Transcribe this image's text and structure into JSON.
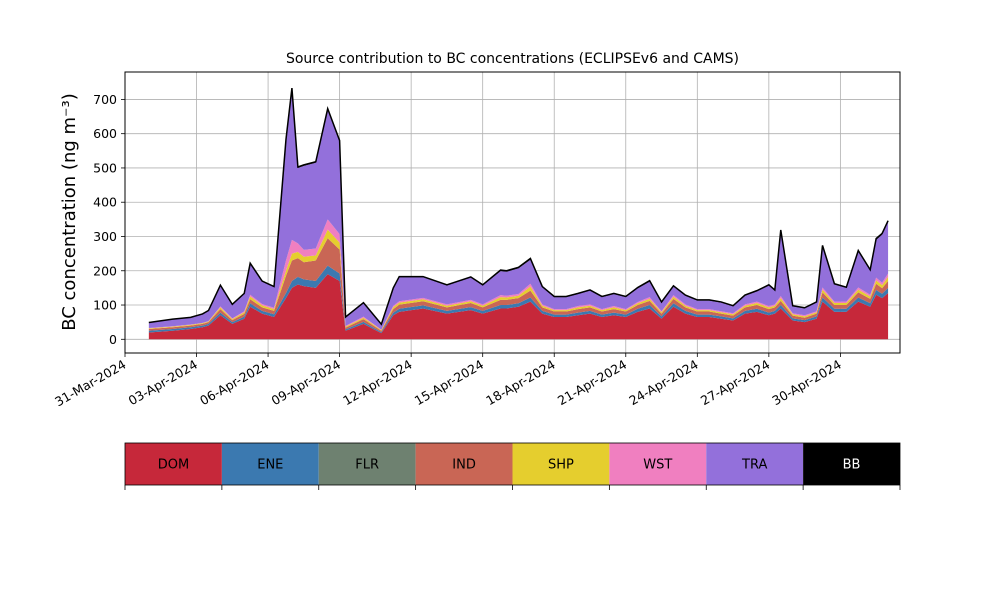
{
  "chart_data": {
    "type": "area",
    "stacked": true,
    "title": "Source contribution to BC concentrations (ECLIPSEv6 and CAMS)",
    "ylabel": "BC concentration (ng m⁻³)",
    "xlabel": "",
    "ylim": [
      -40,
      780
    ],
    "xlim": [
      "2024-03-31T00:00",
      "2024-05-02T12:00"
    ],
    "yticks": [
      0,
      100,
      200,
      300,
      400,
      500,
      600,
      700
    ],
    "xtick_labels": [
      "31-Mar-2024",
      "03-Apr-2024",
      "06-Apr-2024",
      "09-Apr-2024",
      "12-Apr-2024",
      "15-Apr-2024",
      "18-Apr-2024",
      "21-Apr-2024",
      "24-Apr-2024",
      "27-Apr-2024",
      "30-Apr-2024"
    ],
    "grid": true,
    "x": [
      "2024-04-01T00:00",
      "2024-04-02T00:00",
      "2024-04-02T18:00",
      "2024-04-03T06:00",
      "2024-04-03T12:00",
      "2024-04-04T00:00",
      "2024-04-04T12:00",
      "2024-04-05T00:00",
      "2024-04-05T06:00",
      "2024-04-05T18:00",
      "2024-04-06T06:00",
      "2024-04-06T18:00",
      "2024-04-07T00:00",
      "2024-04-07T06:00",
      "2024-04-07T12:00",
      "2024-04-08T00:00",
      "2024-04-08T12:00",
      "2024-04-09T00:00",
      "2024-04-09T06:00",
      "2024-04-10T00:00",
      "2024-04-10T18:00",
      "2024-04-11T06:00",
      "2024-04-11T12:00",
      "2024-04-12T12:00",
      "2024-04-13T12:00",
      "2024-04-14T12:00",
      "2024-04-15T00:00",
      "2024-04-15T18:00",
      "2024-04-16T00:00",
      "2024-04-16T12:00",
      "2024-04-17T00:00",
      "2024-04-17T12:00",
      "2024-04-18T00:00",
      "2024-04-18T12:00",
      "2024-04-19T00:00",
      "2024-04-19T12:00",
      "2024-04-20T00:00",
      "2024-04-20T12:00",
      "2024-04-21T00:00",
      "2024-04-21T12:00",
      "2024-04-22T00:00",
      "2024-04-22T12:00",
      "2024-04-23T00:00",
      "2024-04-23T12:00",
      "2024-04-24T00:00",
      "2024-04-24T12:00",
      "2024-04-25T00:00",
      "2024-04-25T12:00",
      "2024-04-26T00:00",
      "2024-04-26T12:00",
      "2024-04-27T00:00",
      "2024-04-27T06:00",
      "2024-04-27T12:00",
      "2024-04-28T00:00",
      "2024-04-28T12:00",
      "2024-04-29T00:00",
      "2024-04-29T06:00",
      "2024-04-29T18:00",
      "2024-04-30T06:00",
      "2024-04-30T18:00",
      "2024-05-01T06:00",
      "2024-05-01T12:00",
      "2024-05-01T18:00",
      "2024-05-02T00:00"
    ],
    "series": [
      {
        "name": "DOM",
        "values": [
          20,
          25,
          30,
          35,
          40,
          70,
          45,
          60,
          95,
          75,
          65,
          120,
          150,
          160,
          155,
          150,
          190,
          170,
          25,
          45,
          18,
          70,
          80,
          90,
          75,
          85,
          75,
          90,
          90,
          95,
          110,
          75,
          65,
          65,
          70,
          75,
          65,
          70,
          65,
          80,
          90,
          60,
          95,
          75,
          65,
          65,
          60,
          55,
          75,
          80,
          70,
          75,
          90,
          55,
          50,
          60,
          110,
          80,
          80,
          110,
          95,
          130,
          120,
          135
        ]
      },
      {
        "name": "ENE",
        "values": [
          5,
          5,
          5,
          5,
          5,
          8,
          5,
          6,
          10,
          8,
          8,
          15,
          20,
          22,
          20,
          20,
          25,
          22,
          4,
          6,
          3,
          8,
          9,
          9,
          8,
          9,
          8,
          10,
          10,
          10,
          12,
          8,
          7,
          7,
          8,
          8,
          7,
          8,
          7,
          9,
          10,
          7,
          10,
          8,
          7,
          7,
          7,
          6,
          8,
          9,
          8,
          8,
          10,
          6,
          6,
          7,
          12,
          9,
          9,
          12,
          10,
          14,
          13,
          15
        ]
      },
      {
        "name": "FLR",
        "values": [
          0,
          0,
          0,
          0,
          0,
          0,
          0,
          0,
          0,
          0,
          0,
          0,
          0,
          0,
          0,
          0,
          0,
          0,
          0,
          0,
          0,
          0,
          0,
          0,
          0,
          0,
          0,
          0,
          0,
          0,
          0,
          0,
          0,
          0,
          0,
          0,
          0,
          0,
          0,
          0,
          0,
          0,
          0,
          0,
          0,
          0,
          0,
          0,
          0,
          0,
          0,
          0,
          0,
          0,
          0,
          0,
          0,
          0,
          0,
          0,
          0,
          0,
          0,
          0
        ]
      },
      {
        "name": "IND",
        "values": [
          5,
          5,
          5,
          5,
          5,
          10,
          6,
          8,
          12,
          10,
          10,
          50,
          60,
          55,
          50,
          60,
          80,
          70,
          5,
          8,
          4,
          10,
          12,
          12,
          10,
          12,
          10,
          15,
          15,
          15,
          20,
          10,
          9,
          9,
          10,
          10,
          9,
          10,
          9,
          11,
          12,
          8,
          13,
          10,
          9,
          9,
          8,
          8,
          10,
          11,
          10,
          10,
          12,
          8,
          7,
          8,
          15,
          11,
          11,
          15,
          13,
          18,
          16,
          20
        ]
      },
      {
        "name": "SHP",
        "values": [
          2,
          2,
          2,
          2,
          2,
          5,
          3,
          5,
          8,
          6,
          5,
          15,
          20,
          18,
          16,
          15,
          25,
          20,
          3,
          4,
          2,
          6,
          6,
          6,
          5,
          5,
          5,
          8,
          7,
          7,
          12,
          5,
          4,
          4,
          5,
          5,
          4,
          5,
          4,
          5,
          6,
          4,
          6,
          5,
          4,
          4,
          4,
          4,
          5,
          6,
          5,
          5,
          8,
          4,
          4,
          4,
          8,
          6,
          6,
          8,
          7,
          10,
          9,
          12
        ]
      },
      {
        "name": "WST",
        "values": [
          1,
          1,
          1,
          1,
          1,
          3,
          2,
          3,
          5,
          4,
          4,
          30,
          40,
          25,
          20,
          20,
          30,
          25,
          2,
          3,
          1,
          4,
          4,
          4,
          4,
          4,
          4,
          6,
          5,
          5,
          8,
          4,
          3,
          3,
          4,
          4,
          3,
          4,
          3,
          4,
          5,
          3,
          5,
          4,
          3,
          3,
          3,
          3,
          4,
          4,
          4,
          4,
          6,
          3,
          3,
          3,
          6,
          4,
          4,
          6,
          5,
          8,
          7,
          10
        ]
      },
      {
        "name": "TRA",
        "values": [
          15,
          20,
          20,
          25,
          30,
          60,
          40,
          50,
          90,
          65,
          60,
          350,
          440,
          220,
          245,
          250,
          320,
          270,
          25,
          40,
          15,
          50,
          70,
          60,
          55,
          65,
          55,
          70,
          70,
          75,
          70,
          50,
          35,
          35,
          35,
          40,
          35,
          35,
          35,
          40,
          45,
          25,
          25,
          25,
          25,
          25,
          25,
          20,
          25,
          30,
          60,
          40,
          190,
          20,
          20,
          25,
          120,
          50,
          40,
          105,
          70,
          110,
          140,
          150
        ]
      },
      {
        "name": "BB",
        "values": [
          1,
          1,
          1,
          1,
          1,
          2,
          1,
          2,
          2,
          2,
          2,
          3,
          3,
          3,
          3,
          3,
          3,
          3,
          1,
          1,
          1,
          2,
          2,
          2,
          2,
          2,
          2,
          3,
          3,
          3,
          4,
          2,
          2,
          2,
          2,
          2,
          2,
          2,
          2,
          2,
          3,
          2,
          2,
          2,
          2,
          2,
          2,
          2,
          2,
          2,
          2,
          2,
          3,
          2,
          2,
          2,
          3,
          2,
          2,
          3,
          3,
          4,
          4,
          4
        ]
      }
    ],
    "colors": {
      "DOM": "#c6283a",
      "ENE": "#3b79b0",
      "FLR": "#6e8170",
      "IND": "#c96655",
      "SHP": "#e5ce2e",
      "WST": "#f07fc0",
      "TRA": "#9370db",
      "BB": "#000000"
    },
    "legend": {
      "placement": "bottom",
      "entries": [
        "DOM",
        "ENE",
        "FLR",
        "IND",
        "SHP",
        "WST",
        "TRA",
        "BB"
      ]
    }
  }
}
